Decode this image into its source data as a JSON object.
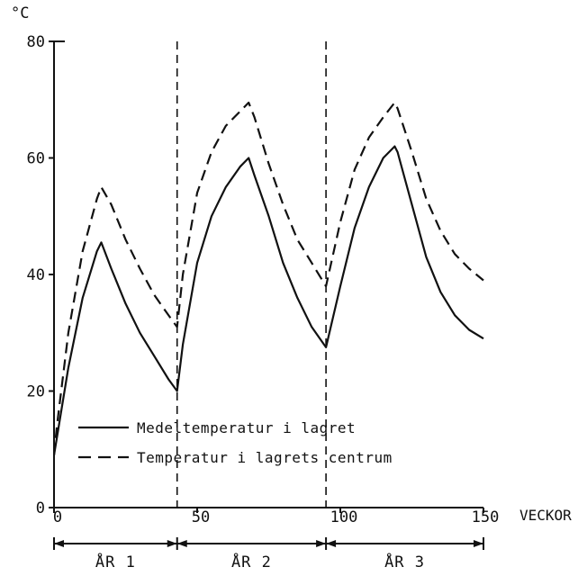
{
  "chart_data": {
    "type": "line",
    "y_unit": "°C",
    "xlabel": "VECKOR",
    "xlim": [
      0,
      150
    ],
    "ylim": [
      0,
      80
    ],
    "x_ticks": [
      0,
      50,
      100,
      150
    ],
    "y_ticks": [
      0,
      20,
      40,
      60,
      80
    ],
    "year_dividers": [
      43,
      95
    ],
    "periods": [
      {
        "label": "ÅR 1",
        "start": 0,
        "end": 43
      },
      {
        "label": "ÅR 2",
        "start": 43,
        "end": 95
      },
      {
        "label": "ÅR 3",
        "start": 95,
        "end": 150
      }
    ],
    "series": [
      {
        "name": "Medeltemperatur i lagret",
        "style": "solid",
        "x": [
          0,
          1,
          5,
          10,
          15,
          16.5,
          20,
          25,
          30,
          35,
          40,
          43,
          45,
          50,
          55,
          60,
          65,
          68,
          70,
          75,
          80,
          85,
          90,
          95,
          100,
          105,
          110,
          115,
          119,
          120,
          125,
          130,
          135,
          140,
          145,
          150
        ],
        "y": [
          9,
          12,
          24,
          36,
          44,
          45.5,
          41,
          35,
          30,
          26,
          22,
          20,
          28,
          42,
          50,
          55,
          58.5,
          60,
          57,
          50,
          42,
          36,
          31,
          27.5,
          38,
          48,
          55,
          60,
          62,
          61,
          52,
          43,
          37,
          33,
          30.5,
          29
        ]
      },
      {
        "name": "Temperatur i lagrets centrum",
        "style": "dashed",
        "x": [
          0,
          1,
          5,
          10,
          15,
          16.5,
          20,
          25,
          30,
          35,
          40,
          43,
          45,
          50,
          55,
          60,
          65,
          68,
          70,
          75,
          80,
          85,
          90,
          95,
          100,
          105,
          110,
          115,
          119,
          120,
          125,
          130,
          135,
          140,
          145,
          150
        ],
        "y": [
          9,
          14,
          30,
          44,
          53,
          55,
          52,
          46,
          41,
          36.5,
          33,
          31,
          40,
          54,
          61,
          65.5,
          68,
          69.5,
          67,
          59,
          52,
          46,
          42,
          38,
          49,
          58,
          63.5,
          67,
          69.5,
          68.5,
          61,
          53,
          47.5,
          43.5,
          41,
          39
        ]
      }
    ]
  }
}
